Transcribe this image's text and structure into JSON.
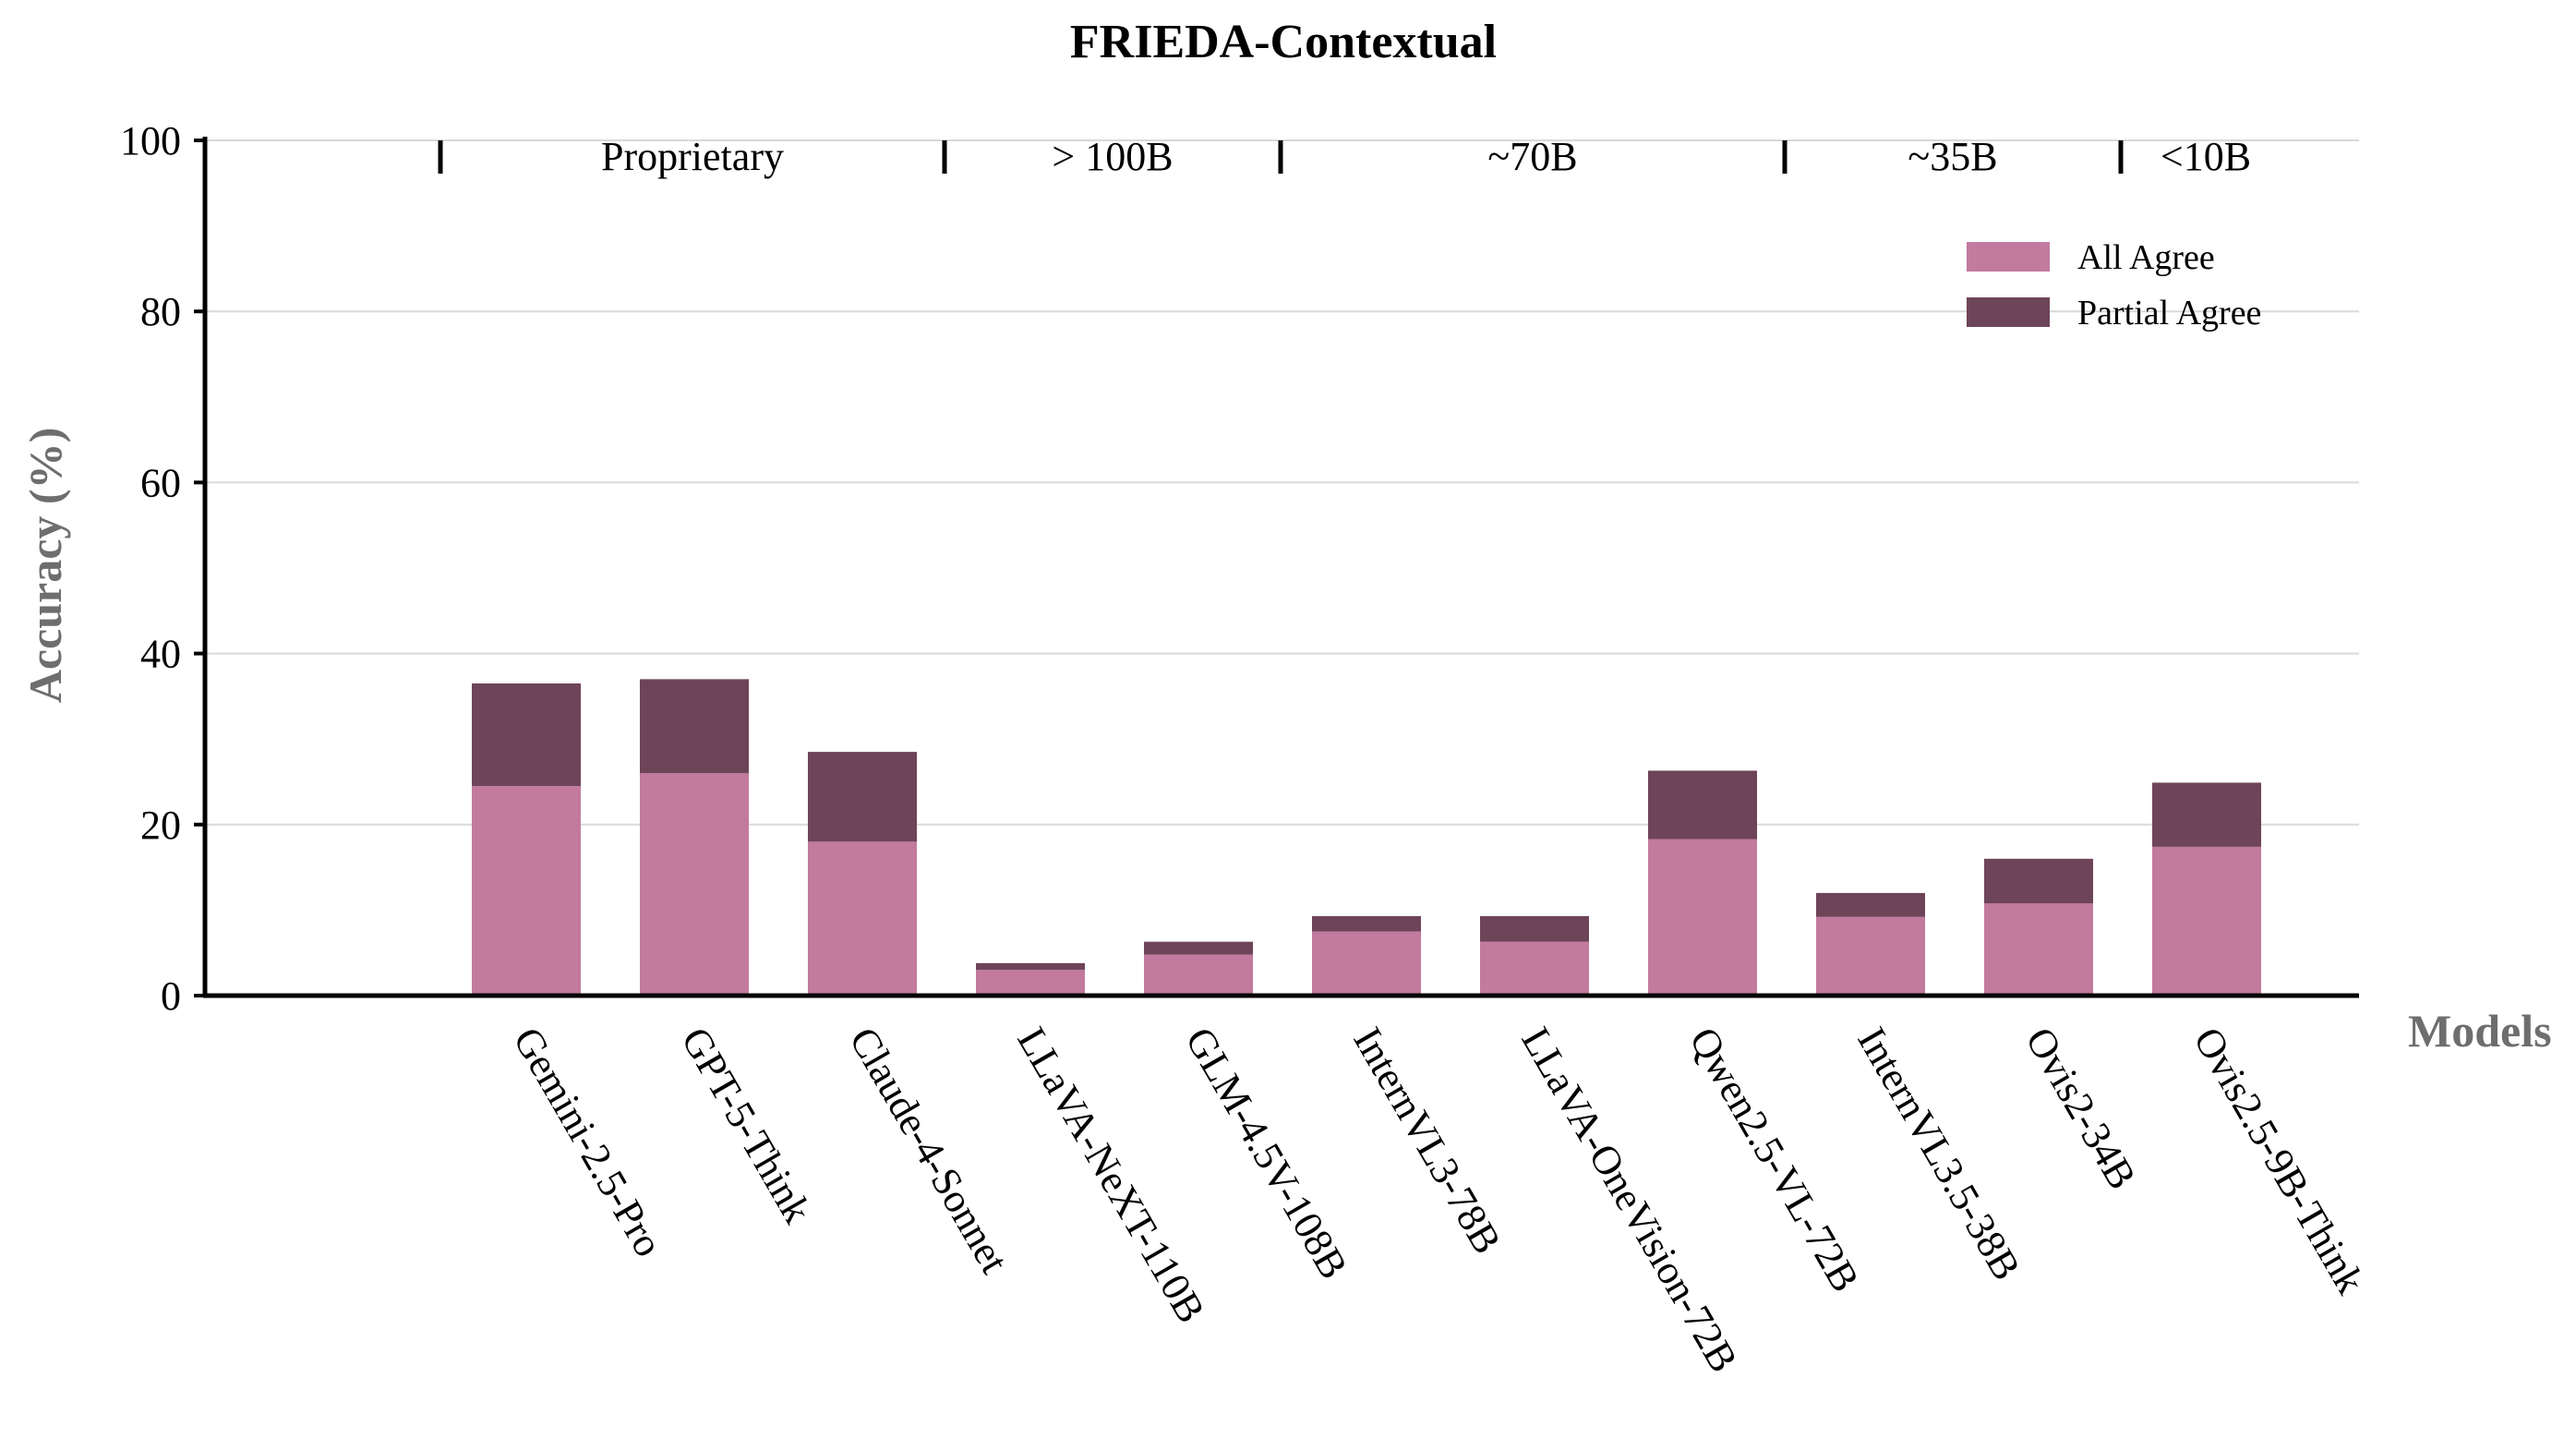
{
  "chart_data": {
    "type": "bar",
    "stacked": true,
    "title": "FRIEDA-Contextual",
    "xlabel": "Models",
    "ylabel": "Accuracy (%)",
    "ylim": [
      0,
      100
    ],
    "yticks": [
      0,
      20,
      40,
      60,
      80,
      100
    ],
    "grid": true,
    "legend_position": "top-right",
    "categories": [
      "Gemini-2.5-Pro",
      "GPT-5-Think",
      "Claude-4-Sonnet",
      "LLaVA-NeXT-110B",
      "GLM-4.5V-108B",
      "InternVL3-78B",
      "LLaVA-OneVision-72B",
      "Qwen2.5-VL-72B",
      "InternVL3.5-38B",
      "Ovis2-34B",
      "Ovis2.5-9B-Think"
    ],
    "series": [
      {
        "name": "All Agree",
        "color": "#c27a9e",
        "values": [
          24.5,
          26.0,
          18.0,
          3.0,
          4.8,
          7.5,
          6.3,
          18.3,
          9.2,
          10.8,
          17.4
        ]
      },
      {
        "name": "Partial Agree",
        "color": "#6e4459",
        "values": [
          12.0,
          11.0,
          10.5,
          0.8,
          1.5,
          1.8,
          3.0,
          8.0,
          2.8,
          5.2,
          7.5
        ]
      }
    ],
    "groups": [
      {
        "label": "Proprietary",
        "start": 0,
        "end": 2
      },
      {
        "label": "> 100B",
        "start": 3,
        "end": 4
      },
      {
        "label": "~70B",
        "start": 5,
        "end": 7
      },
      {
        "label": "~35B",
        "start": 8,
        "end": 9
      },
      {
        "label": "<10B",
        "start": 10,
        "end": 10
      }
    ]
  }
}
